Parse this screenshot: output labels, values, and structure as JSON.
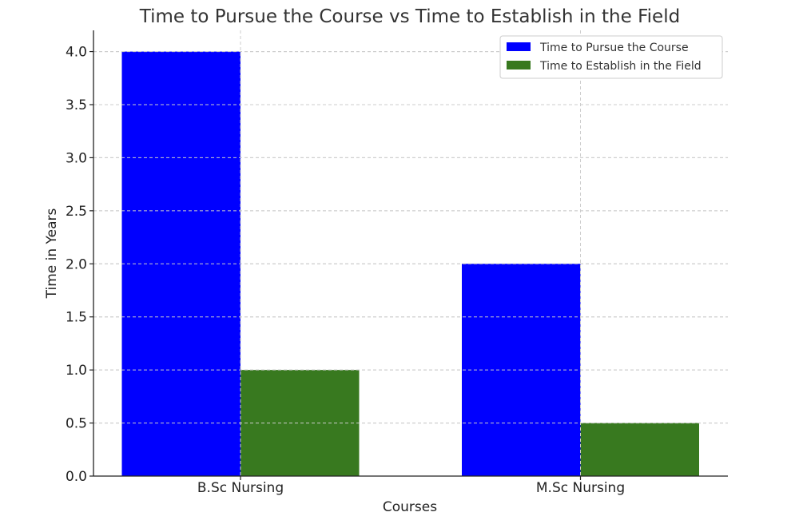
{
  "chart_data": {
    "type": "bar",
    "title": "Time to Pursue the Course vs Time to Establish in the Field",
    "xlabel": "Courses",
    "ylabel": "Time in Years",
    "categories": [
      "B.Sc Nursing",
      "M.Sc Nursing"
    ],
    "series": [
      {
        "name": "Time to Pursue the Course",
        "values": [
          4.0,
          2.0
        ],
        "color": "#0000ff"
      },
      {
        "name": "Time to Establish in the Field",
        "values": [
          1.0,
          0.5
        ],
        "color": "#38791f"
      }
    ],
    "ylim": [
      0,
      4.2
    ],
    "yticks": [
      "0.0",
      "0.5",
      "1.0",
      "1.5",
      "2.0",
      "2.5",
      "3.0",
      "3.5",
      "4.0"
    ],
    "grid": true,
    "legend_position": "top-right"
  }
}
